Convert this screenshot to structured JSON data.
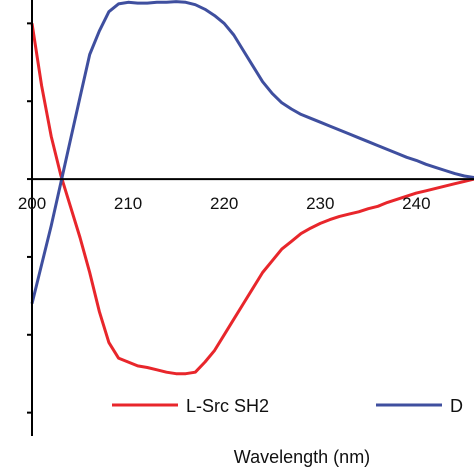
{
  "chart_data": {
    "type": "line",
    "xlabel": "Wavelength (nm)",
    "ylabel": "",
    "xlim": [
      200,
      246
    ],
    "ylim": [
      -3.3,
      2.3
    ],
    "x_ticks": [
      200,
      210,
      220,
      230,
      240
    ],
    "y_tick_values": [
      2,
      1,
      0,
      -1,
      -2,
      -3
    ],
    "grid": false,
    "legend_position": "bottom",
    "series": [
      {
        "name": "L-Src SH2",
        "color": "#e8262b",
        "points": [
          [
            200,
            2.0
          ],
          [
            201,
            1.2
          ],
          [
            202,
            0.55
          ],
          [
            203,
            0.05
          ],
          [
            204,
            -0.35
          ],
          [
            205,
            -0.75
          ],
          [
            206,
            -1.2
          ],
          [
            207,
            -1.7
          ],
          [
            208,
            -2.1
          ],
          [
            209,
            -2.3
          ],
          [
            210,
            -2.35
          ],
          [
            211,
            -2.4
          ],
          [
            212,
            -2.42
          ],
          [
            213,
            -2.45
          ],
          [
            214,
            -2.48
          ],
          [
            215,
            -2.5
          ],
          [
            216,
            -2.5
          ],
          [
            217,
            -2.48
          ],
          [
            218,
            -2.35
          ],
          [
            219,
            -2.2
          ],
          [
            220,
            -2.0
          ],
          [
            221,
            -1.8
          ],
          [
            222,
            -1.6
          ],
          [
            223,
            -1.4
          ],
          [
            224,
            -1.2
          ],
          [
            225,
            -1.05
          ],
          [
            226,
            -0.9
          ],
          [
            227,
            -0.8
          ],
          [
            228,
            -0.7
          ],
          [
            229,
            -0.63
          ],
          [
            230,
            -0.57
          ],
          [
            231,
            -0.52
          ],
          [
            232,
            -0.48
          ],
          [
            233,
            -0.45
          ],
          [
            234,
            -0.42
          ],
          [
            235,
            -0.38
          ],
          [
            236,
            -0.35
          ],
          [
            237,
            -0.3
          ],
          [
            238,
            -0.26
          ],
          [
            239,
            -0.22
          ],
          [
            240,
            -0.18
          ],
          [
            241,
            -0.15
          ],
          [
            242,
            -0.12
          ],
          [
            243,
            -0.09
          ],
          [
            244,
            -0.06
          ],
          [
            245,
            -0.03
          ],
          [
            246,
            0.0
          ]
        ]
      },
      {
        "name": "D",
        "color": "#3f4f9f",
        "points": [
          [
            200,
            -1.6
          ],
          [
            201,
            -1.1
          ],
          [
            202,
            -0.6
          ],
          [
            203,
            -0.05
          ],
          [
            204,
            0.5
          ],
          [
            205,
            1.05
          ],
          [
            206,
            1.6
          ],
          [
            207,
            1.9
          ],
          [
            208,
            2.15
          ],
          [
            209,
            2.25
          ],
          [
            210,
            2.27
          ],
          [
            211,
            2.26
          ],
          [
            212,
            2.26
          ],
          [
            213,
            2.27
          ],
          [
            214,
            2.27
          ],
          [
            215,
            2.28
          ],
          [
            216,
            2.27
          ],
          [
            217,
            2.24
          ],
          [
            218,
            2.18
          ],
          [
            219,
            2.1
          ],
          [
            220,
            2.0
          ],
          [
            221,
            1.85
          ],
          [
            222,
            1.65
          ],
          [
            223,
            1.45
          ],
          [
            224,
            1.25
          ],
          [
            225,
            1.1
          ],
          [
            226,
            0.98
          ],
          [
            227,
            0.9
          ],
          [
            228,
            0.83
          ],
          [
            229,
            0.78
          ],
          [
            230,
            0.73
          ],
          [
            231,
            0.68
          ],
          [
            232,
            0.63
          ],
          [
            233,
            0.58
          ],
          [
            234,
            0.53
          ],
          [
            235,
            0.48
          ],
          [
            236,
            0.43
          ],
          [
            237,
            0.38
          ],
          [
            238,
            0.33
          ],
          [
            239,
            0.28
          ],
          [
            240,
            0.24
          ],
          [
            241,
            0.19
          ],
          [
            242,
            0.15
          ],
          [
            243,
            0.11
          ],
          [
            244,
            0.07
          ],
          [
            245,
            0.04
          ],
          [
            246,
            0.02
          ]
        ]
      }
    ]
  }
}
